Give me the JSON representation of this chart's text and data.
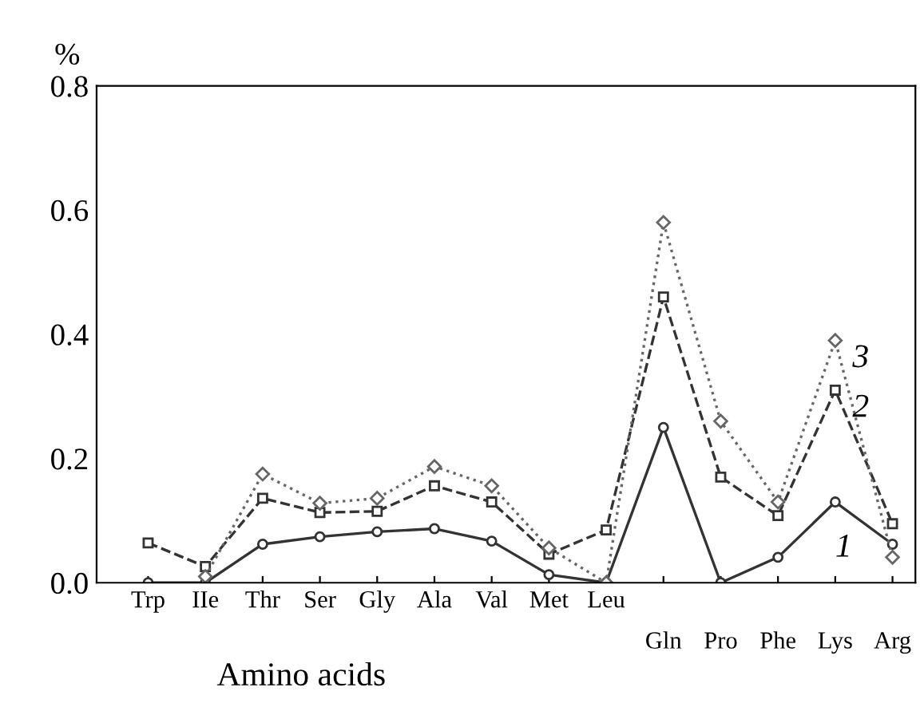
{
  "chart_data": {
    "type": "line",
    "ylabel": "%",
    "xlabel": "Amino acids",
    "categories": [
      "Trp",
      "IIe",
      "Thr",
      "Ser",
      "Gly",
      "Ala",
      "Val",
      "Met",
      "Leu",
      "Gln",
      "Pro",
      "Phe",
      "Lys",
      "Arg"
    ],
    "series": [
      {
        "name": "1",
        "color": "#333333",
        "marker": "circle",
        "line_style": "solid",
        "values": [
          0.0,
          0.0,
          0.062,
          0.074,
          0.082,
          0.087,
          0.067,
          0.013,
          0.0,
          0.25,
          0.0,
          0.041,
          0.13,
          0.062
        ]
      },
      {
        "name": "2",
        "color": "#333333",
        "marker": "square",
        "line_style": "dashed",
        "values": [
          0.064,
          0.026,
          0.136,
          0.113,
          0.115,
          0.156,
          0.13,
          0.046,
          0.085,
          0.46,
          0.17,
          0.108,
          0.31,
          0.095
        ]
      },
      {
        "name": "3",
        "color": "#666666",
        "marker": "diamond",
        "line_style": "dotted",
        "values": [
          null,
          0.01,
          0.175,
          0.128,
          0.136,
          0.187,
          0.156,
          0.056,
          0.0,
          0.58,
          0.26,
          0.13,
          0.39,
          0.041
        ]
      }
    ],
    "ylim": [
      0,
      0.8
    ],
    "yticks": [
      {
        "value": 0,
        "label": "0.0"
      },
      0.2,
      0.4,
      0.6,
      0.8
    ],
    "grid": false,
    "legend": false
  }
}
